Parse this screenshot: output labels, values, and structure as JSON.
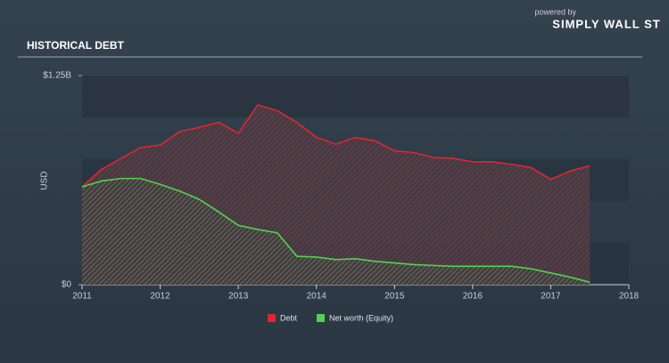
{
  "brand": {
    "powered": "powered by",
    "name": "SIMPLY WALL ST"
  },
  "chart_data": {
    "type": "area",
    "title": "HISTORICAL DEBT",
    "y_label": "USD",
    "xlim": [
      2011,
      2018
    ],
    "xticks": [
      2011,
      2012,
      2013,
      2014,
      2015,
      2016,
      2017,
      2018
    ],
    "ylim": [
      0,
      1.25
    ],
    "yticks": [
      {
        "value": 0,
        "label": "$0"
      },
      {
        "value": 1.25,
        "label": "$1.25B"
      }
    ],
    "x": [
      2011,
      2011.25,
      2011.5,
      2011.75,
      2012,
      2012.25,
      2012.5,
      2012.75,
      2013,
      2013.25,
      2013.5,
      2013.75,
      2014,
      2014.25,
      2014.5,
      2014.75,
      2015,
      2015.25,
      2015.5,
      2015.75,
      2016,
      2016.25,
      2016.5,
      2016.75,
      2017,
      2017.25,
      2017.5
    ],
    "series": [
      {
        "name": "Debt",
        "color": "#e0262f",
        "values": [
          0.585,
          0.69,
          0.755,
          0.82,
          0.835,
          0.915,
          0.94,
          0.97,
          0.905,
          1.075,
          1.04,
          0.97,
          0.88,
          0.84,
          0.88,
          0.86,
          0.8,
          0.79,
          0.76,
          0.755,
          0.735,
          0.735,
          0.72,
          0.7,
          0.63,
          0.68,
          0.71
        ]
      },
      {
        "name": "Net worth (Equity)",
        "color": "#4fd44f",
        "values": [
          0.585,
          0.62,
          0.635,
          0.635,
          0.6,
          0.56,
          0.51,
          0.435,
          0.355,
          0.33,
          0.31,
          0.17,
          0.165,
          0.15,
          0.155,
          0.14,
          0.13,
          0.12,
          0.115,
          0.11,
          0.11,
          0.11,
          0.11,
          0.095,
          0.07,
          0.045,
          0.015
        ]
      }
    ],
    "legend": "bottom"
  }
}
